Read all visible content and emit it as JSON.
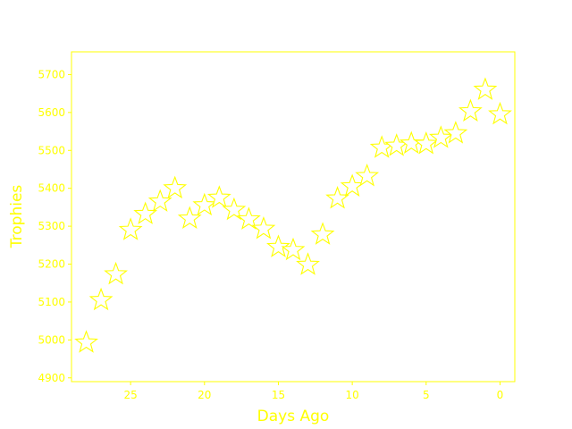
{
  "colors": {
    "accent": "#ffff00",
    "background": "#ffffff",
    "star_fill": "#ffffff"
  },
  "chart_data": {
    "type": "scatter",
    "marker": "star-icon",
    "xlabel": "Days Ago",
    "ylabel": "Trophies",
    "x_inverted": true,
    "xlim": [
      29,
      -1
    ],
    "ylim": [
      4890,
      5760
    ],
    "xticks": [
      25,
      20,
      15,
      10,
      5,
      0
    ],
    "yticks": [
      4900,
      5000,
      5100,
      5200,
      5300,
      5400,
      5500,
      5600,
      5700
    ],
    "grid": false,
    "series": [
      {
        "x": [
          28,
          27,
          26,
          25,
          24,
          23,
          22,
          21,
          20,
          19,
          18,
          17,
          16,
          15,
          14,
          13,
          12,
          11,
          10,
          9,
          8,
          7,
          6,
          5,
          4,
          3,
          2,
          1,
          0
        ],
        "y": [
          4993,
          5105,
          5173,
          5290,
          5332,
          5365,
          5400,
          5320,
          5355,
          5375,
          5343,
          5318,
          5293,
          5245,
          5237,
          5198,
          5278,
          5373,
          5405,
          5432,
          5507,
          5512,
          5518,
          5517,
          5533,
          5545,
          5603,
          5660,
          5595
        ]
      }
    ]
  }
}
